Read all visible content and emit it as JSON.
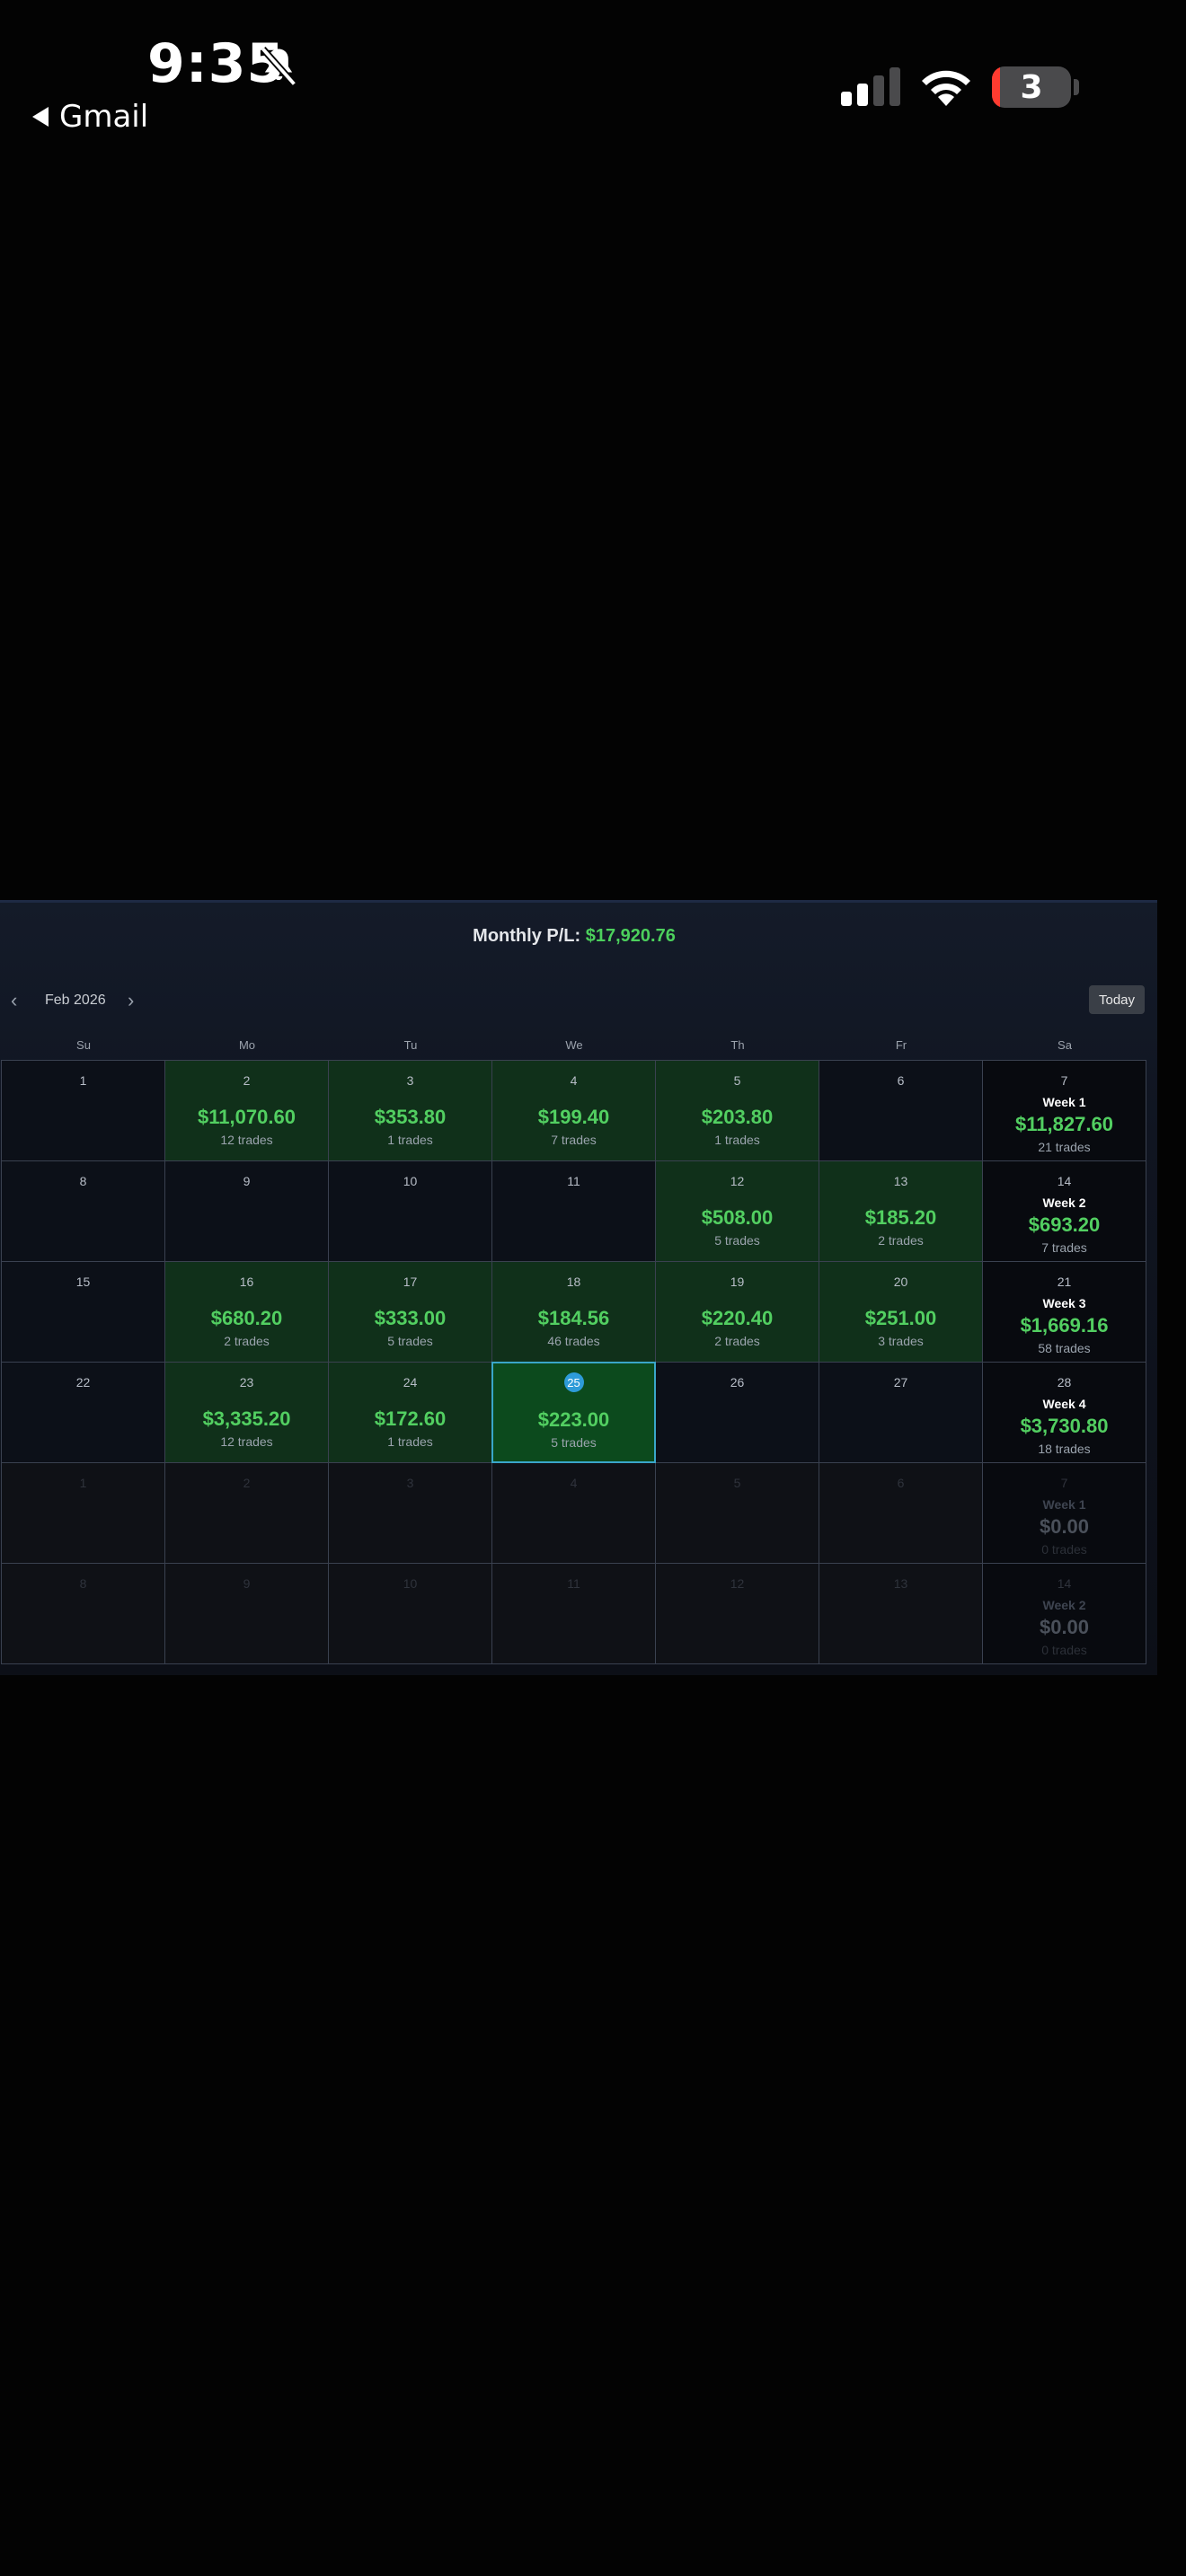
{
  "status_bar": {
    "time": "9:35",
    "back_label": "Gmail",
    "battery_level": "3"
  },
  "calendar": {
    "monthly_pl_label": "Monthly P/L:",
    "monthly_pl_value": "$17,920.76",
    "month_label": "Feb 2026",
    "prev_icon": "‹",
    "next_icon": "›",
    "today_label": "Today",
    "weekdays": [
      "Su",
      "Mo",
      "Tu",
      "We",
      "Th",
      "Fr",
      "Sa"
    ],
    "weeks": [
      [
        {
          "day": "1"
        },
        {
          "day": "2",
          "pl": "$11,070.60",
          "trades": "12 trades"
        },
        {
          "day": "3",
          "pl": "$353.80",
          "trades": "1 trades"
        },
        {
          "day": "4",
          "pl": "$199.40",
          "trades": "7 trades"
        },
        {
          "day": "5",
          "pl": "$203.80",
          "trades": "1 trades"
        },
        {
          "day": "6"
        },
        {
          "day": "7",
          "week_label": "Week 1",
          "pl": "$11,827.60",
          "trades": "21 trades"
        }
      ],
      [
        {
          "day": "8"
        },
        {
          "day": "9"
        },
        {
          "day": "10"
        },
        {
          "day": "11"
        },
        {
          "day": "12",
          "pl": "$508.00",
          "trades": "5 trades"
        },
        {
          "day": "13",
          "pl": "$185.20",
          "trades": "2 trades"
        },
        {
          "day": "14",
          "week_label": "Week 2",
          "pl": "$693.20",
          "trades": "7 trades"
        }
      ],
      [
        {
          "day": "15"
        },
        {
          "day": "16",
          "pl": "$680.20",
          "trades": "2 trades"
        },
        {
          "day": "17",
          "pl": "$333.00",
          "trades": "5 trades"
        },
        {
          "day": "18",
          "pl": "$184.56",
          "trades": "46 trades"
        },
        {
          "day": "19",
          "pl": "$220.40",
          "trades": "2 trades"
        },
        {
          "day": "20",
          "pl": "$251.00",
          "trades": "3 trades"
        },
        {
          "day": "21",
          "week_label": "Week 3",
          "pl": "$1,669.16",
          "trades": "58 trades"
        }
      ],
      [
        {
          "day": "22"
        },
        {
          "day": "23",
          "pl": "$3,335.20",
          "trades": "12 trades"
        },
        {
          "day": "24",
          "pl": "$172.60",
          "trades": "1 trades"
        },
        {
          "day": "25",
          "pl": "$223.00",
          "trades": "5 trades",
          "today": true
        },
        {
          "day": "26"
        },
        {
          "day": "27"
        },
        {
          "day": "28",
          "week_label": "Week 4",
          "pl": "$3,730.80",
          "trades": "18 trades"
        }
      ],
      [
        {
          "day": "1",
          "dim": true
        },
        {
          "day": "2",
          "dim": true
        },
        {
          "day": "3",
          "dim": true
        },
        {
          "day": "4",
          "dim": true
        },
        {
          "day": "5",
          "dim": true
        },
        {
          "day": "6",
          "dim": true
        },
        {
          "day": "7",
          "dim": true,
          "week_label": "Week 1",
          "pl": "$0.00",
          "trades": "0 trades"
        }
      ],
      [
        {
          "day": "8",
          "dim": true
        },
        {
          "day": "9",
          "dim": true
        },
        {
          "day": "10",
          "dim": true
        },
        {
          "day": "11",
          "dim": true
        },
        {
          "day": "12",
          "dim": true
        },
        {
          "day": "13",
          "dim": true
        },
        {
          "day": "14",
          "dim": true,
          "week_label": "Week 2",
          "pl": "$0.00",
          "trades": "0 trades"
        }
      ]
    ]
  }
}
